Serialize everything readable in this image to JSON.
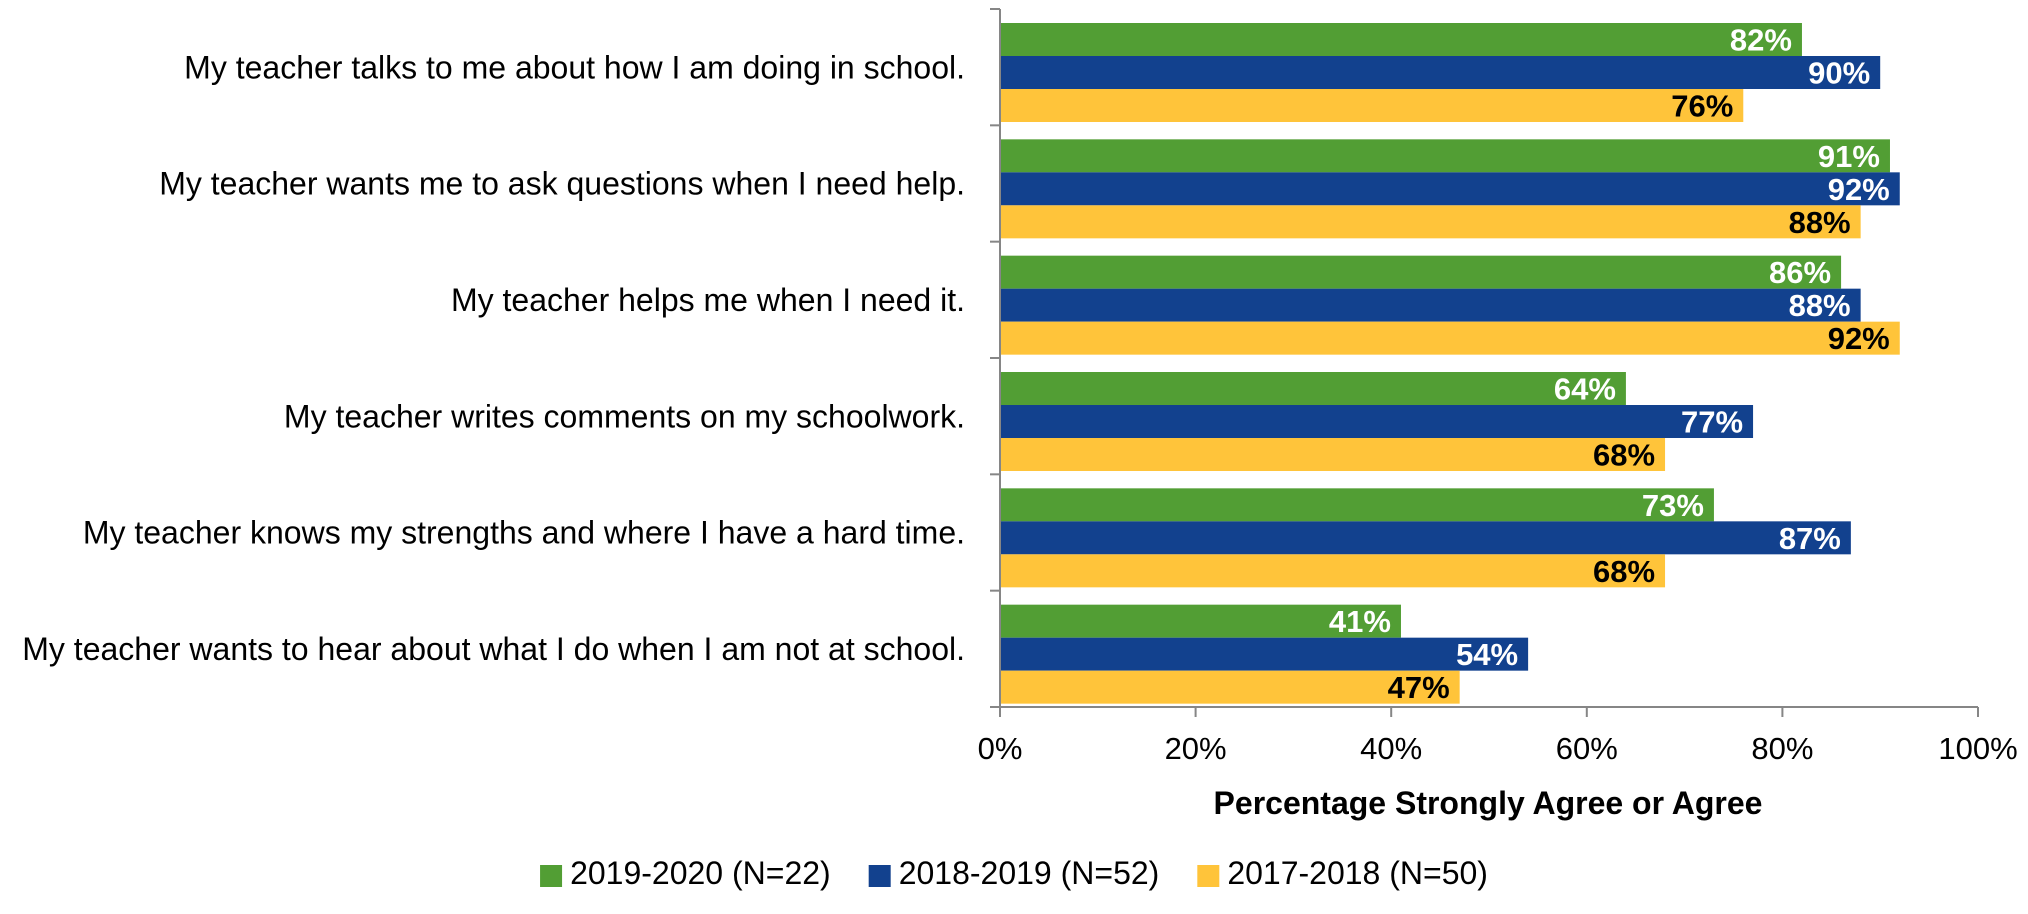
{
  "chart_data": {
    "type": "bar",
    "orientation": "horizontal",
    "categories": [
      "My teacher talks to me about how I am doing in school.",
      "My teacher wants me to ask questions when I need help.",
      "My teacher helps me when I need it.",
      "My teacher writes comments on my schoolwork.",
      "My teacher knows my strengths and where I have a hard time.",
      "My teacher wants to hear about what I do when I am not at school."
    ],
    "series": [
      {
        "name": "2019-2020 (N=22)",
        "color": "#529E34",
        "label_color": "#FFFFFF",
        "values": [
          82,
          91,
          86,
          64,
          73,
          41
        ]
      },
      {
        "name": "2018-2019 (N=52)",
        "color": "#12418E",
        "label_color": "#FFFFFF",
        "values": [
          90,
          92,
          88,
          77,
          87,
          54
        ]
      },
      {
        "name": "2017-2018 (N=50)",
        "color": "#FFC43A",
        "label_color": "#000000",
        "values": [
          76,
          88,
          92,
          68,
          68,
          47
        ]
      }
    ],
    "value_suffix": "%",
    "xlabel": "Percentage Strongly Agree or Agree",
    "ylabel": "",
    "xlim": [
      0,
      100
    ],
    "x_ticks": [
      "0%",
      "20%",
      "40%",
      "60%",
      "80%",
      "100%"
    ],
    "grid": false,
    "legend_position": "bottom-center",
    "data_labels": "inside-end"
  }
}
